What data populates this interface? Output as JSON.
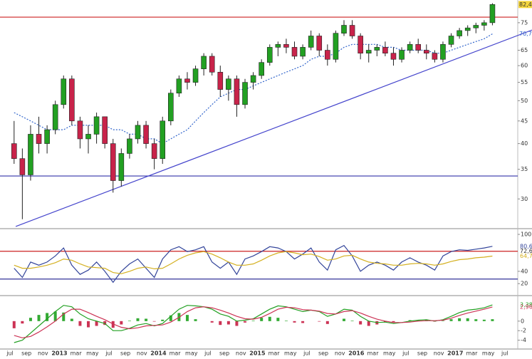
{
  "chart_data": [
    {
      "type": "candlestick",
      "categories": [
        "jul",
        null,
        "sep",
        null,
        "nov",
        null,
        "2013",
        null,
        "mar",
        null,
        "may",
        null,
        "jul",
        null,
        "sep",
        null,
        "nov",
        null,
        "2014",
        null,
        "mar",
        null,
        "may",
        null,
        "jul",
        null,
        "sep",
        null,
        "nov",
        null,
        "2015",
        null,
        "mar",
        null,
        "may",
        null,
        "jul",
        null,
        "sep",
        null,
        "nov",
        null,
        "2016",
        null,
        "mar",
        null,
        "may",
        null,
        "jul",
        null,
        "sep",
        null,
        "nov",
        null,
        "2017",
        null,
        "mar",
        null,
        "may",
        null,
        "jul"
      ],
      "open": [
        40,
        37,
        34,
        42,
        40,
        43,
        49,
        56,
        45,
        41,
        42,
        46,
        40,
        33,
        38,
        41,
        44,
        40,
        37,
        45,
        52,
        56,
        55,
        59,
        63,
        58,
        53,
        56,
        49,
        55,
        57,
        61,
        66,
        67,
        66,
        63,
        66,
        70,
        65,
        62,
        71,
        74,
        70,
        64,
        65,
        66,
        64,
        62,
        65,
        67,
        65,
        64,
        62,
        67,
        70,
        72,
        73,
        74,
        75,
        null,
        null
      ],
      "high": [
        45,
        39,
        44,
        46,
        44,
        50,
        57,
        57,
        46,
        44,
        47,
        46,
        41,
        39,
        42,
        45,
        45,
        41,
        46,
        53,
        57,
        58,
        60,
        64,
        64,
        60,
        57,
        57,
        56,
        58,
        62,
        67,
        68,
        69,
        68,
        67,
        72,
        71,
        67,
        72,
        76,
        76,
        71,
        67,
        67,
        68,
        66,
        66,
        68,
        69,
        67,
        65,
        68,
        71,
        73,
        74,
        75,
        76,
        83,
        null,
        null
      ],
      "low": [
        36,
        27,
        33,
        38,
        38,
        42,
        48,
        44,
        39,
        38,
        40,
        39,
        31,
        32,
        37,
        40,
        39,
        35,
        36,
        44,
        51,
        53,
        54,
        57,
        57,
        51,
        50,
        46,
        48,
        53,
        56,
        60,
        63,
        64,
        62,
        62,
        65,
        63,
        60,
        61,
        70,
        69,
        62,
        61,
        63,
        63,
        60,
        61,
        64,
        64,
        62,
        61,
        61,
        66,
        69,
        70,
        71,
        72,
        74,
        null,
        null
      ],
      "close": [
        37,
        34,
        42,
        40,
        43,
        49,
        56,
        45,
        41,
        42,
        46,
        40,
        33,
        38,
        41,
        44,
        40,
        37,
        45,
        52,
        56,
        55,
        59,
        63,
        58,
        53,
        56,
        49,
        55,
        57,
        61,
        66,
        67,
        66,
        63,
        66,
        70,
        65,
        62,
        71,
        74,
        70,
        64,
        65,
        66,
        64,
        62,
        65,
        67,
        65,
        64,
        62,
        67,
        70,
        72,
        73,
        74,
        75,
        82.45,
        null,
        null
      ],
      "up_color": "#22a022",
      "down_color": "#c8234a",
      "ma": {
        "values": [
          47,
          46,
          45,
          44,
          43,
          43,
          43,
          44,
          44,
          44,
          44,
          44,
          43,
          43,
          42,
          42,
          41,
          41,
          40,
          41,
          42,
          43,
          45,
          47,
          49,
          51,
          52,
          53,
          53,
          54,
          55,
          56,
          57,
          58,
          59,
          60,
          62,
          63,
          63,
          64,
          66,
          67,
          67,
          67,
          67,
          66,
          66,
          65,
          65,
          65,
          65,
          64,
          64,
          65,
          66,
          67,
          68,
          69,
          70.77,
          null,
          null
        ],
        "color": "#3366cc"
      },
      "log": true,
      "ylim": [
        25.8,
        84.4
      ],
      "yticks": [
        30,
        35,
        40,
        45,
        50,
        55,
        60,
        65,
        75
      ],
      "hlines": [
        {
          "value": 77.2,
          "color": "#cc2222"
        },
        {
          "value": 33.8,
          "color": "#3333aa"
        }
      ],
      "trendline": {
        "x": [
          0.7,
          63.3
        ],
        "y": [
          26,
          72.2
        ],
        "color": "#4444cc"
      },
      "last_label": {
        "value": 82.45,
        "label": "82,45"
      },
      "ma_label": {
        "value": 70.77,
        "label": "70,77"
      }
    },
    {
      "type": "line",
      "ylim": [
        4,
        107
      ],
      "yticks": [
        20,
        40,
        100
      ],
      "series": [
        {
          "color": "#33449a",
          "values": [
            45,
            30,
            55,
            50,
            55,
            65,
            78,
            50,
            35,
            42,
            55,
            40,
            22,
            40,
            52,
            60,
            45,
            30,
            60,
            75,
            80,
            72,
            75,
            80,
            55,
            45,
            55,
            35,
            60,
            65,
            72,
            80,
            78,
            72,
            60,
            68,
            78,
            55,
            42,
            75,
            82,
            65,
            40,
            50,
            55,
            50,
            42,
            55,
            62,
            55,
            50,
            42,
            65,
            72,
            75,
            74,
            76,
            78,
            80.63,
            null,
            null
          ],
          "last_label": "80,63"
        },
        {
          "color": "#d4b020",
          "values": [
            50,
            45,
            45,
            47,
            50,
            54,
            60,
            58,
            52,
            47,
            46,
            45,
            38,
            36,
            40,
            45,
            47,
            44,
            45,
            52,
            60,
            66,
            70,
            72,
            68,
            62,
            55,
            50,
            50,
            52,
            58,
            65,
            70,
            72,
            70,
            67,
            68,
            64,
            58,
            60,
            65,
            66,
            60,
            55,
            53,
            52,
            50,
            50,
            52,
            53,
            52,
            50,
            52,
            56,
            59,
            60,
            62,
            63,
            64.76,
            null,
            null
          ],
          "last_label": "64,76"
        }
      ],
      "hlines": [
        {
          "value": 72.6,
          "color": "#cc2222",
          "label": "72,60"
        },
        {
          "value": 27.4,
          "color": "#333399"
        }
      ]
    },
    {
      "type": "macd",
      "ylim": [
        -5.7,
        4.9
      ],
      "yticks": [
        -4,
        -2,
        0
      ],
      "series": [
        {
          "color": "#22a022",
          "values": [
            -4.5,
            -4,
            -2.5,
            -1,
            0.5,
            2,
            3.3,
            3,
            1.5,
            0.5,
            0,
            -0.5,
            -2,
            -2,
            -1.5,
            -0.8,
            -0.5,
            -1,
            -0.5,
            1,
            2.5,
            3.3,
            3.2,
            3,
            2.5,
            1.5,
            1,
            0,
            0.2,
            0.5,
            1.5,
            2.5,
            3.2,
            3,
            2.5,
            2,
            2.3,
            2,
            1,
            1.5,
            2.5,
            2.3,
            1,
            0,
            -0.3,
            -0.2,
            -0.5,
            -0.3,
            0,
            0.2,
            0.3,
            0,
            0.3,
            1,
            1.8,
            2.3,
            2.5,
            2.8,
            3.385,
            null,
            null
          ],
          "last_label": "3,385"
        },
        {
          "color": "#cc3355",
          "values": [
            -3,
            -3.5,
            -3.2,
            -2.3,
            -1.2,
            0,
            1.5,
            2.5,
            2.5,
            1.8,
            1,
            0.3,
            -0.6,
            -1.3,
            -1.6,
            -1.4,
            -1,
            -0.9,
            -0.8,
            -0.2,
            0.8,
            2,
            2.8,
            3,
            2.8,
            2.3,
            1.7,
            1,
            0.5,
            0.4,
            0.8,
            1.6,
            2.5,
            2.9,
            2.8,
            2.4,
            2.3,
            2.1,
            1.6,
            1.5,
            2,
            2.2,
            1.7,
            1,
            0.4,
            0,
            -0.3,
            -0.3,
            -0.2,
            0,
            0.1,
            0.1,
            0.2,
            0.6,
            1.2,
            1.7,
            2.1,
            2.5,
            2.969,
            null,
            null
          ],
          "last_label": "2,969"
        }
      ],
      "histogram": {
        "up_color": "#33aa33",
        "down_color": "#cc3355",
        "values": [
          -1.5,
          -0.5,
          0.7,
          1.3,
          1.7,
          2,
          1.8,
          0.5,
          -1,
          -1.3,
          -1,
          -0.8,
          -1.4,
          -0.7,
          0.1,
          0.6,
          0.5,
          -0.1,
          0.3,
          1.2,
          1.7,
          1.3,
          0.4,
          0,
          -0.3,
          -0.8,
          -0.7,
          -1,
          -0.3,
          0.1,
          0.7,
          0.9,
          0.7,
          0.1,
          -0.3,
          -0.4,
          0,
          -0.1,
          -0.6,
          0,
          0.5,
          0.1,
          -0.7,
          -1,
          -0.7,
          -0.2,
          -0.2,
          0,
          0.2,
          0.2,
          0.2,
          -0.1,
          0.1,
          0.4,
          0.6,
          0.6,
          0.4,
          0.3,
          0.4,
          null,
          null
        ]
      }
    }
  ]
}
